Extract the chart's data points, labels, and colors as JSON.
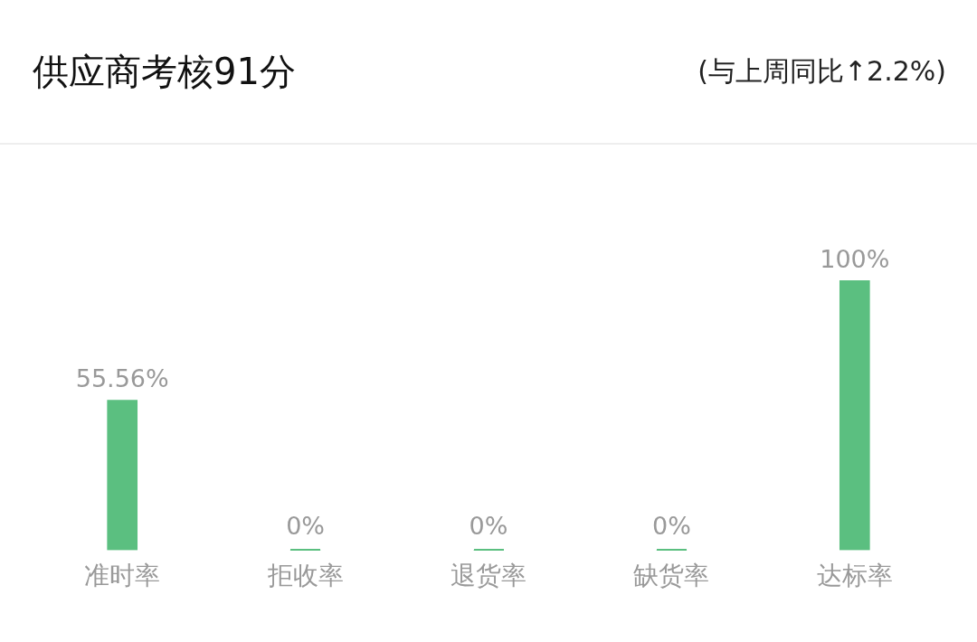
{
  "chart_data": {
    "type": "bar",
    "title": "供应商考核91分",
    "subtitle": "(与上周同比↑2.2%)",
    "categories": [
      "准时率",
      "拒收率",
      "退货率",
      "缺货率",
      "达标率"
    ],
    "values": [
      55.56,
      0,
      0,
      0,
      100
    ],
    "value_labels": [
      "55.56%",
      "0%",
      "0%",
      "0%",
      "100%"
    ],
    "color": "#5bbf80",
    "grid": false,
    "legend": false,
    "tick_labels": "x"
  }
}
